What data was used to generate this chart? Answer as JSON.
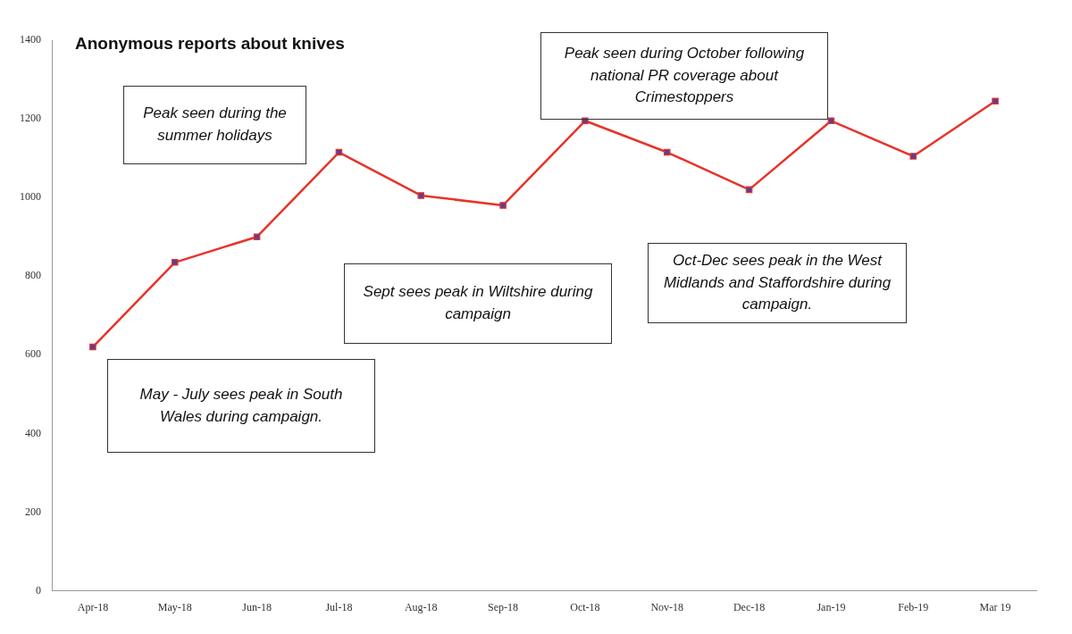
{
  "chart_data": {
    "type": "line",
    "title": "Anonymous reports about knives",
    "categories": [
      "Apr-18",
      "May-18",
      "Jun-18",
      "Jul-18",
      "Aug-18",
      "Sep-18",
      "Oct-18",
      "Nov-18",
      "Dec-18",
      "Jan-19",
      "Feb-19",
      "Mar 19"
    ],
    "series": [
      {
        "color": "#e8332a",
        "values": [
          620,
          835,
          900,
          1115,
          1005,
          980,
          1195,
          1115,
          1020,
          1195,
          1105,
          1245
        ]
      }
    ],
    "ylim": [
      0,
      1400
    ],
    "yticks": [
      0,
      200,
      400,
      600,
      800,
      1000,
      1200,
      1400
    ],
    "grid": false,
    "legend": false,
    "marker": "square",
    "line_style": "solid",
    "annotations": [
      "Peak seen during the summer holidays",
      "May - July sees peak in South Wales during campaign.",
      "Sept sees peak in Wiltshire during campaign",
      "Peak seen during October following national PR coverage about Crimestoppers",
      "Oct-Dec sees peak in the West Midlands and Staffordshire during campaign."
    ]
  }
}
